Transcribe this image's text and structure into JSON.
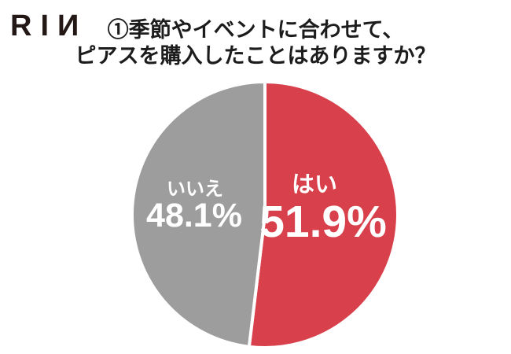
{
  "brand": {
    "logo_text": "RIИ",
    "logo_color": "#231815"
  },
  "header": {
    "title_line1": "①季節やイベントに合わせて、",
    "title_line2": "ピアスを購入したことはありますか？",
    "title_color": "#1c1c1c"
  },
  "chart_data": {
    "type": "pie",
    "title": "①季節やイベントに合わせて、ピアスを購入したことはありますか？",
    "unit": "%",
    "direction": "clockwise",
    "start_angle_deg": 0,
    "divider_color": "#ffffff",
    "background_color": "#ffffff",
    "slices": [
      {
        "label": "はい",
        "value": 51.9,
        "display": "51.9%",
        "color": "#d8404b",
        "label_color": "#ffffff"
      },
      {
        "label": "いいえ",
        "value": 48.1,
        "display": "48.1%",
        "color": "#9d9d9e",
        "label_color": "#ffffff"
      }
    ]
  }
}
